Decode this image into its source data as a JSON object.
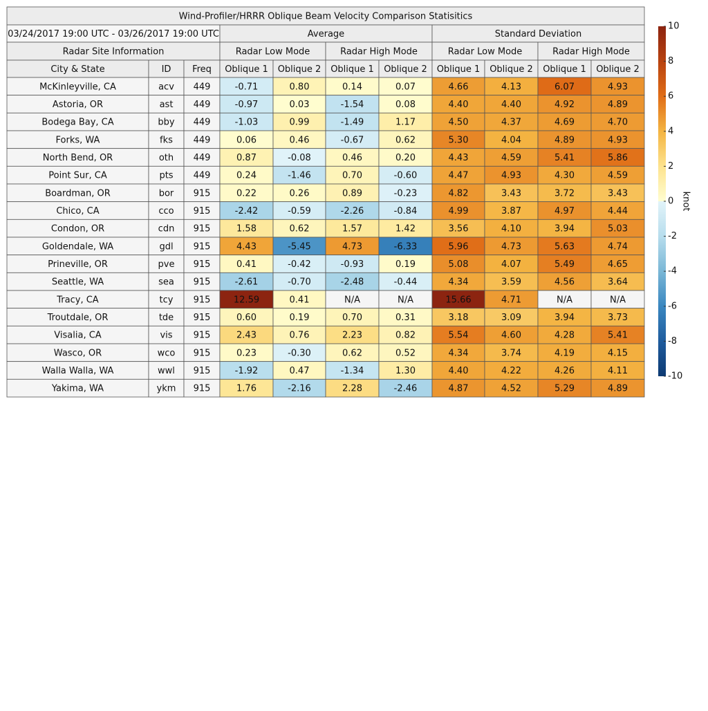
{
  "title": "Wind-Profiler/HRRR Oblique Beam Velocity Comparison Statisitics",
  "date_range": "03/24/2017 19:00 UTC - 03/26/2017 19:00 UTC",
  "site_header": "Radar Site Information",
  "groups": [
    "Average",
    "Standard Deviation"
  ],
  "subgroups": [
    "Radar Low Mode",
    "Radar High Mode",
    "Radar Low Mode",
    "Radar High Mode"
  ],
  "columns": [
    "City & State",
    "ID",
    "Freq",
    "Oblique 1",
    "Oblique 2",
    "Oblique 1",
    "Oblique 2",
    "Oblique 1",
    "Oblique 2",
    "Oblique 1",
    "Oblique 2"
  ],
  "rows": [
    [
      "McKinleyville, CA",
      "acv",
      449,
      "-0.71",
      "0.80",
      "0.14",
      "0.07",
      "4.66",
      "4.13",
      "6.07",
      "4.93"
    ],
    [
      "Astoria, OR",
      "ast",
      449,
      "-0.97",
      "0.03",
      "-1.54",
      "0.08",
      "4.40",
      "4.40",
      "4.92",
      "4.89"
    ],
    [
      "Bodega Bay, CA",
      "bby",
      449,
      "-1.03",
      "0.99",
      "-1.49",
      "1.17",
      "4.50",
      "4.37",
      "4.69",
      "4.70"
    ],
    [
      "Forks, WA",
      "fks",
      449,
      "0.06",
      "0.46",
      "-0.67",
      "0.62",
      "5.30",
      "4.04",
      "4.89",
      "4.93"
    ],
    [
      "North Bend, OR",
      "oth",
      449,
      "0.87",
      "-0.08",
      "0.46",
      "0.20",
      "4.43",
      "4.59",
      "5.41",
      "5.86"
    ],
    [
      "Point Sur, CA",
      "pts",
      449,
      "0.24",
      "-1.46",
      "0.70",
      "-0.60",
      "4.47",
      "4.93",
      "4.30",
      "4.59"
    ],
    [
      "Boardman, OR",
      "bor",
      915,
      "0.22",
      "0.26",
      "0.89",
      "-0.23",
      "4.82",
      "3.43",
      "3.72",
      "3.43"
    ],
    [
      "Chico, CA",
      "cco",
      915,
      "-2.42",
      "-0.59",
      "-2.26",
      "-0.84",
      "4.99",
      "3.87",
      "4.97",
      "4.44"
    ],
    [
      "Condon, OR",
      "cdn",
      915,
      "1.58",
      "0.62",
      "1.57",
      "1.42",
      "3.56",
      "4.10",
      "3.94",
      "5.03"
    ],
    [
      "Goldendale, WA",
      "gdl",
      915,
      "4.43",
      "-5.45",
      "4.73",
      "-6.33",
      "5.96",
      "4.73",
      "5.63",
      "4.74"
    ],
    [
      "Prineville, OR",
      "pve",
      915,
      "0.41",
      "-0.42",
      "-0.93",
      "0.19",
      "5.08",
      "4.07",
      "5.49",
      "4.65"
    ],
    [
      "Seattle, WA",
      "sea",
      915,
      "-2.61",
      "-0.70",
      "-2.48",
      "-0.44",
      "4.34",
      "3.59",
      "4.56",
      "3.64"
    ],
    [
      "Tracy, CA",
      "tcy",
      915,
      "12.59",
      "0.41",
      "N/A",
      "N/A",
      "15.66",
      "4.71",
      "N/A",
      "N/A"
    ],
    [
      "Troutdale, OR",
      "tde",
      915,
      "0.60",
      "0.19",
      "0.70",
      "0.31",
      "3.18",
      "3.09",
      "3.94",
      "3.73"
    ],
    [
      "Visalia, CA",
      "vis",
      915,
      "2.43",
      "0.76",
      "2.23",
      "0.82",
      "5.54",
      "4.60",
      "4.28",
      "5.41"
    ],
    [
      "Wasco, OR",
      "wco",
      915,
      "0.23",
      "-0.30",
      "0.62",
      "0.52",
      "4.34",
      "3.74",
      "4.19",
      "4.15"
    ],
    [
      "Walla Walla, WA",
      "wwl",
      915,
      "-1.92",
      "0.47",
      "-1.34",
      "1.30",
      "4.40",
      "4.22",
      "4.26",
      "4.11"
    ],
    [
      "Yakima, WA",
      "ykm",
      915,
      "1.76",
      "-2.16",
      "2.28",
      "-2.46",
      "4.87",
      "4.52",
      "5.29",
      "4.89"
    ]
  ],
  "colorbar": {
    "label": "knot",
    "lim": [
      -10,
      10
    ],
    "ticks": [
      -10,
      -8,
      -6,
      -4,
      -2,
      0,
      2,
      4,
      6,
      8,
      10
    ]
  }
}
